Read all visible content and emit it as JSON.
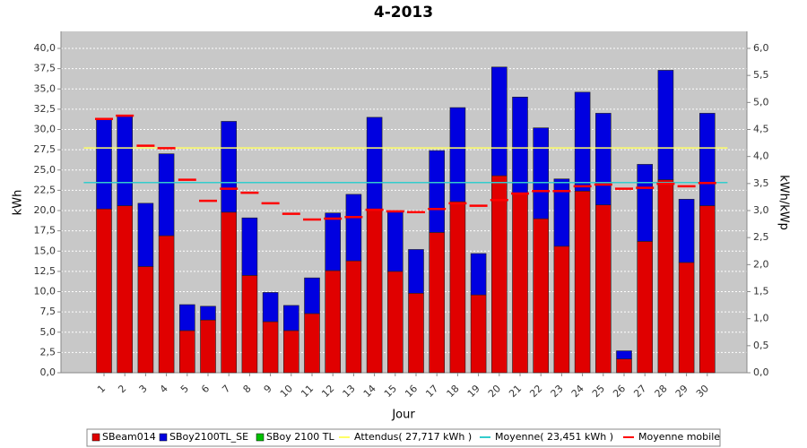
{
  "chart_data": {
    "type": "bar",
    "title": "4-2013",
    "x_label": "Jour",
    "y_label": "kWh",
    "y2_label": "kWh/kWp",
    "stacked": true,
    "grid": true,
    "categories": [
      "1",
      "2",
      "3",
      "4",
      "5",
      "6",
      "7",
      "8",
      "9",
      "10",
      "11",
      "12",
      "13",
      "14",
      "15",
      "16",
      "17",
      "18",
      "19",
      "20",
      "21",
      "22",
      "23",
      "24",
      "25",
      "26",
      "27",
      "28",
      "29",
      "30"
    ],
    "series": [
      {
        "name": "SBeam014",
        "color": "#e00000",
        "values": [
          20.2,
          20.6,
          13.1,
          16.9,
          5.2,
          6.5,
          19.8,
          12.0,
          6.3,
          5.2,
          7.3,
          12.6,
          13.8,
          20.2,
          12.5,
          9.8,
          17.3,
          21.1,
          9.6,
          24.3,
          22.1,
          19.0,
          15.6,
          22.4,
          20.7,
          1.7,
          16.2,
          23.8,
          13.6,
          20.6
        ]
      },
      {
        "name": "SBoy2100TL_SE",
        "color": "#0000e0",
        "values": [
          11.2,
          11.1,
          7.8,
          10.1,
          3.2,
          1.7,
          11.2,
          7.1,
          3.6,
          3.1,
          4.4,
          7.1,
          8.2,
          11.3,
          7.3,
          5.4,
          10.1,
          11.6,
          5.1,
          13.4,
          11.9,
          11.2,
          8.3,
          12.2,
          11.3,
          1.0,
          9.5,
          13.5,
          7.8,
          11.4
        ]
      },
      {
        "name": "SBoy 2100 TL",
        "color": "#00c000",
        "values": [
          0,
          0,
          0,
          0,
          0,
          0,
          0,
          0,
          0,
          0,
          0,
          0,
          0,
          0,
          0,
          0,
          0,
          0,
          0,
          0,
          0,
          0,
          0,
          0,
          0,
          0,
          0,
          0,
          0,
          0
        ]
      }
    ],
    "reference_lines": [
      {
        "name": "Attendus( 27,717 kWh )",
        "color": "#ffff66",
        "value": 27.717
      },
      {
        "name": "Moyenne( 23,451 kWh )",
        "color": "#33cccc",
        "value": 23.451
      }
    ],
    "moving_average": {
      "name": "Moyenne mobile",
      "color": "#ff0000",
      "values": [
        31.3,
        31.7,
        28.0,
        27.7,
        23.8,
        21.2,
        22.7,
        22.2,
        20.9,
        19.6,
        18.9,
        19.0,
        19.2,
        20.1,
        19.9,
        19.8,
        20.2,
        20.9,
        20.6,
        21.3,
        22.1,
        22.4,
        22.4,
        23.0,
        23.2,
        22.7,
        22.8,
        23.3,
        23.0,
        23.4
      ]
    },
    "ylim": [
      0,
      42.1
    ],
    "yticks": [
      {
        "value": 0,
        "label": "0,0"
      },
      {
        "value": 2.5,
        "label": "2,5"
      },
      {
        "value": 5,
        "label": "5,0"
      },
      {
        "value": 7.5,
        "label": "7,5"
      },
      {
        "value": 10,
        "label": "10,0"
      },
      {
        "value": 12.5,
        "label": "12,5"
      },
      {
        "value": 15,
        "label": "15,0"
      },
      {
        "value": 17.5,
        "label": "17,5"
      },
      {
        "value": 20,
        "label": "20,0"
      },
      {
        "value": 22.5,
        "label": "22,5"
      },
      {
        "value": 25,
        "label": "25,0"
      },
      {
        "value": 27.5,
        "label": "27,5"
      },
      {
        "value": 30,
        "label": "30,0"
      },
      {
        "value": 32.5,
        "label": "32,5"
      },
      {
        "value": 35,
        "label": "35,0"
      },
      {
        "value": 37.5,
        "label": "37,5"
      },
      {
        "value": 40,
        "label": "40,0"
      }
    ],
    "y2lim": [
      0,
      6.315
    ],
    "y2ticks": [
      {
        "value": 0,
        "label": "0,0"
      },
      {
        "value": 0.5,
        "label": "0,5"
      },
      {
        "value": 1,
        "label": "1,0"
      },
      {
        "value": 1.5,
        "label": "1,5"
      },
      {
        "value": 2,
        "label": "2,0"
      },
      {
        "value": 2.5,
        "label": "2,5"
      },
      {
        "value": 3,
        "label": "3,0"
      },
      {
        "value": 3.5,
        "label": "3,5"
      },
      {
        "value": 4,
        "label": "4,0"
      },
      {
        "value": 4.5,
        "label": "4,5"
      },
      {
        "value": 5,
        "label": "5,0"
      },
      {
        "value": 5.5,
        "label": "5,5"
      },
      {
        "value": 6,
        "label": "6,0"
      }
    ],
    "legend_position": "bottom"
  }
}
